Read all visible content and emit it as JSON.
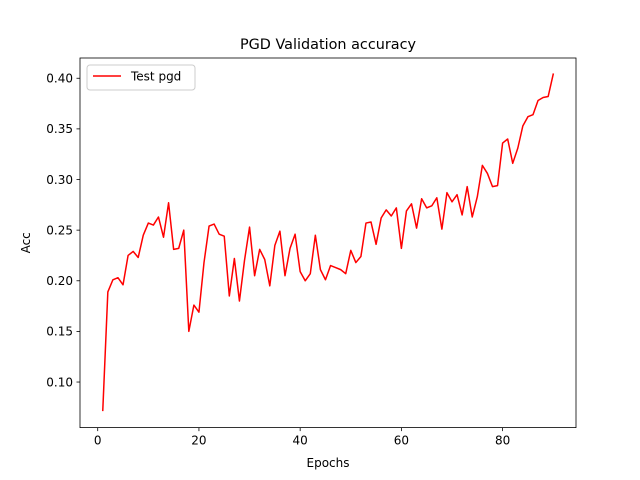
{
  "chart_data": {
    "type": "line",
    "title": "PGD Validation accuracy",
    "xlabel": "Epochs",
    "ylabel": "Acc",
    "xlim": [
      -3.5,
      94.5
    ],
    "ylim": [
      0.055,
      0.42
    ],
    "xticks": [
      0,
      20,
      40,
      60,
      80
    ],
    "yticks": [
      0.1,
      0.15,
      0.2,
      0.25,
      0.3,
      0.35,
      0.4
    ],
    "ytick_labels": [
      "0.10",
      "0.15",
      "0.20",
      "0.25",
      "0.30",
      "0.35",
      "0.40"
    ],
    "grid": false,
    "legend": "upper-left",
    "colors": {
      "series": "#ff0000",
      "axes": "#000000",
      "legend_border": "#cccccc"
    },
    "series": [
      {
        "name": "Test pgd",
        "x": [
          1,
          2,
          3,
          4,
          5,
          6,
          7,
          8,
          9,
          10,
          11,
          12,
          13,
          14,
          15,
          16,
          17,
          18,
          19,
          20,
          21,
          22,
          23,
          24,
          25,
          26,
          27,
          28,
          29,
          30,
          31,
          32,
          33,
          34,
          35,
          36,
          37,
          38,
          39,
          40,
          41,
          42,
          43,
          44,
          45,
          46,
          47,
          48,
          49,
          50,
          51,
          52,
          53,
          54,
          55,
          56,
          57,
          58,
          59,
          60,
          61,
          62,
          63,
          64,
          65,
          66,
          67,
          68,
          69,
          70,
          71,
          72,
          73,
          74,
          75,
          76,
          77,
          78,
          79,
          80,
          81,
          82,
          83,
          84,
          85,
          86,
          87,
          88,
          89,
          90
        ],
        "values": [
          0.072,
          0.189,
          0.201,
          0.203,
          0.196,
          0.225,
          0.229,
          0.223,
          0.245,
          0.257,
          0.255,
          0.263,
          0.243,
          0.277,
          0.231,
          0.232,
          0.25,
          0.15,
          0.176,
          0.169,
          0.218,
          0.254,
          0.256,
          0.246,
          0.244,
          0.185,
          0.222,
          0.18,
          0.22,
          0.253,
          0.205,
          0.231,
          0.221,
          0.195,
          0.235,
          0.249,
          0.205,
          0.232,
          0.246,
          0.209,
          0.2,
          0.207,
          0.245,
          0.211,
          0.201,
          0.215,
          0.213,
          0.211,
          0.207,
          0.23,
          0.218,
          0.224,
          0.257,
          0.258,
          0.236,
          0.262,
          0.27,
          0.264,
          0.272,
          0.232,
          0.269,
          0.276,
          0.252,
          0.281,
          0.272,
          0.274,
          0.282,
          0.251,
          0.287,
          0.278,
          0.285,
          0.265,
          0.293,
          0.263,
          0.283,
          0.314,
          0.306,
          0.293,
          0.294,
          0.336,
          0.34,
          0.316,
          0.331,
          0.353,
          0.362,
          0.364,
          0.378,
          0.381,
          0.382,
          0.404
        ]
      }
    ]
  }
}
